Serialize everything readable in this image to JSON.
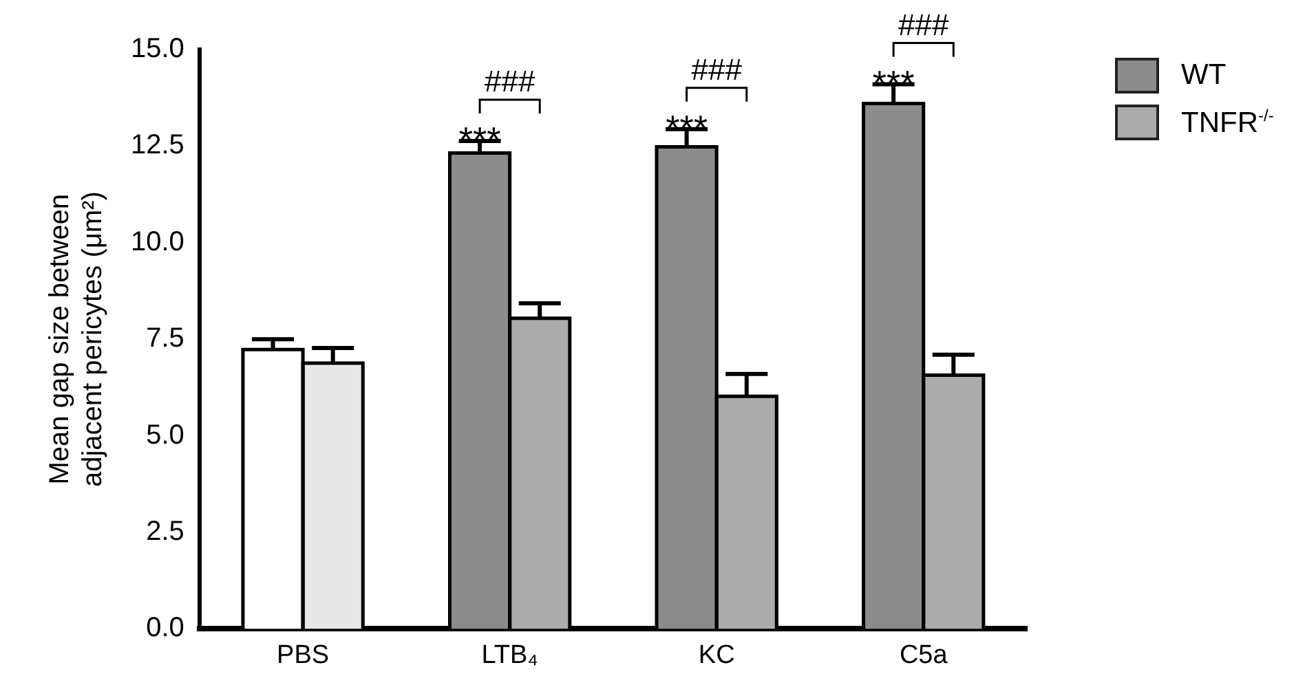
{
  "chart_data": {
    "type": "bar",
    "ylabel": "Mean gap size between\nadjacent pericytes (μm²)",
    "categories": [
      "PBS",
      "LTB₄",
      "KC",
      "C5a"
    ],
    "series": [
      {
        "name": "WT",
        "color": "#8c8c8c",
        "colors": [
          "#ffffff",
          "#8c8c8c",
          "#8c8c8c",
          "#8c8c8c"
        ],
        "values": [
          7.23,
          12.32,
          12.48,
          13.6
        ],
        "errors": [
          [
            7.23,
            7.5
          ],
          [
            12.32,
            12.63
          ],
          [
            12.48,
            12.94
          ],
          [
            13.6,
            14.1
          ]
        ]
      },
      {
        "name": "TNFR$^{-/-}$",
        "color": "#ababab",
        "colors": [
          "#e8e8e8",
          "#ababab",
          "#ababab",
          "#ababab"
        ],
        "values": [
          6.88,
          8.04,
          6.02,
          6.57
        ],
        "errors": [
          [
            6.88,
            7.27
          ],
          [
            8.04,
            8.43
          ],
          [
            6.02,
            6.6
          ],
          [
            6.57,
            7.1
          ]
        ]
      }
    ],
    "ylim": [
      0,
      15
    ],
    "yticks": [
      {
        "value": 0,
        "label": "0.0"
      },
      {
        "value": 2.5,
        "label": "2.5"
      },
      {
        "value": 5,
        "label": "5.0"
      },
      {
        "value": 7.5,
        "label": "7.5"
      },
      {
        "value": 10,
        "label": "10.0"
      },
      {
        "value": 12.5,
        "label": "12.5"
      },
      {
        "value": 15,
        "label": "15.0"
      }
    ],
    "annotations": [
      "***",
      "***",
      "***",
      "###",
      "###",
      "###"
    ],
    "grid": false,
    "legend": "top right"
  }
}
